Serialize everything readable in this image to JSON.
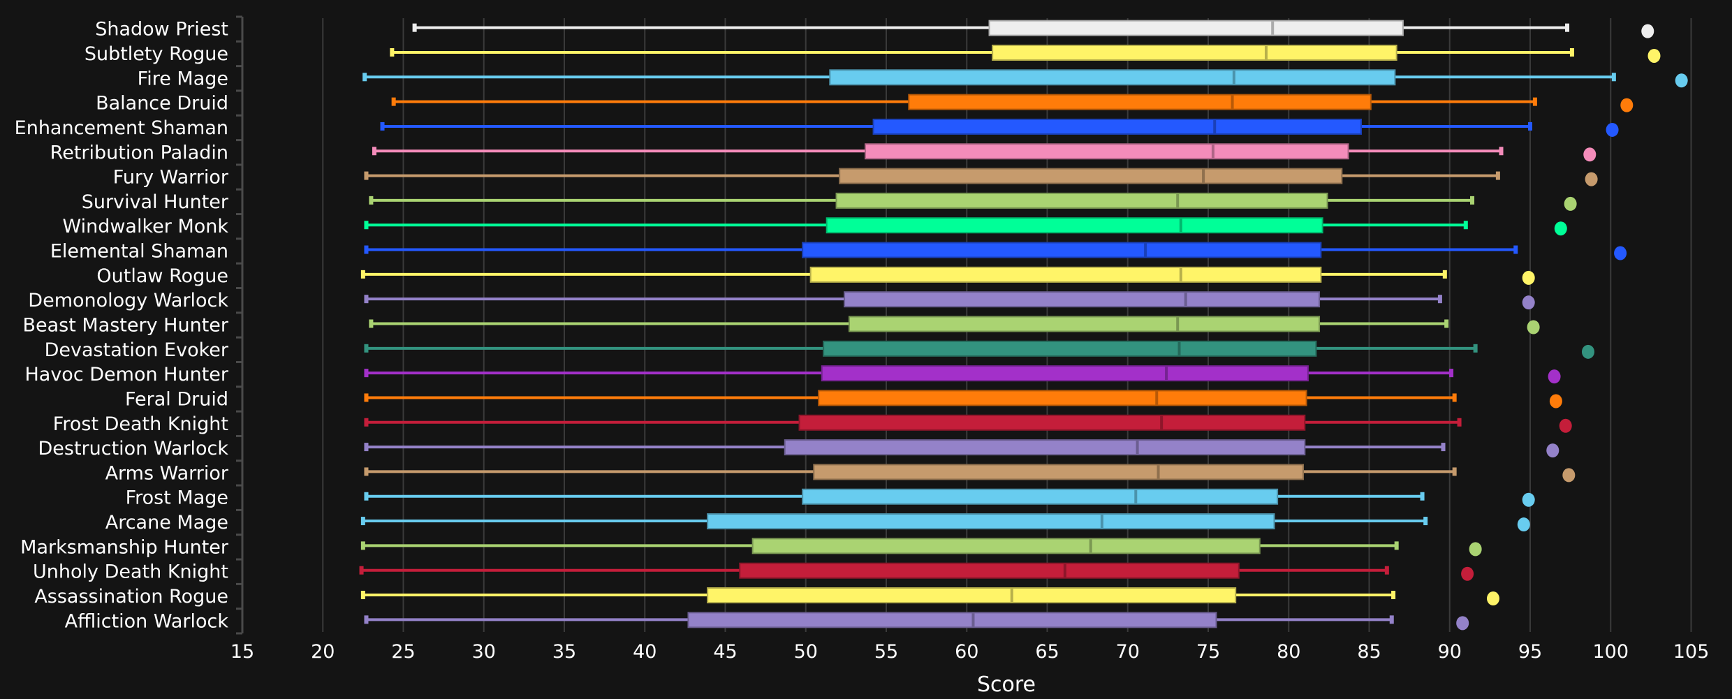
{
  "chart_data": {
    "type": "boxplot",
    "title": "",
    "xlabel": "Score",
    "ylabel": "",
    "xlim": [
      15,
      105
    ],
    "xticks": [
      15,
      20,
      25,
      30,
      35,
      40,
      45,
      50,
      55,
      60,
      65,
      70,
      75,
      80,
      85,
      90,
      95,
      100,
      105
    ],
    "grid": true,
    "orientation": "horizontal",
    "series": [
      {
        "name": "Shadow Priest",
        "color": "#eeeeee",
        "whisker_low": 25.7,
        "q1": 61.4,
        "median": 79.0,
        "q3": 87.1,
        "whisker_high": 97.3,
        "outlier": 102.3
      },
      {
        "name": "Subtlety Rogue",
        "color": "#fff468",
        "whisker_low": 24.3,
        "q1": 61.6,
        "median": 78.6,
        "q3": 86.7,
        "whisker_high": 97.6,
        "outlier": 102.7
      },
      {
        "name": "Fire Mage",
        "color": "#68ccef",
        "whisker_low": 22.6,
        "q1": 51.5,
        "median": 76.6,
        "q3": 86.6,
        "whisker_high": 100.2,
        "outlier": 104.4
      },
      {
        "name": "Balance Druid",
        "color": "#ff7c0a",
        "whisker_low": 24.4,
        "q1": 56.4,
        "median": 76.5,
        "q3": 85.1,
        "whisker_high": 95.3,
        "outlier": 101.0
      },
      {
        "name": "Enhancement Shaman",
        "color": "#2459ff",
        "whisker_low": 23.7,
        "q1": 54.2,
        "median": 75.4,
        "q3": 84.5,
        "whisker_high": 95.0,
        "outlier": 100.1
      },
      {
        "name": "Retribution Paladin",
        "color": "#f48cba",
        "whisker_low": 23.2,
        "q1": 53.7,
        "median": 75.3,
        "q3": 83.7,
        "whisker_high": 93.2,
        "outlier": 98.7
      },
      {
        "name": "Fury Warrior",
        "color": "#c69b6d",
        "whisker_low": 22.7,
        "q1": 52.1,
        "median": 74.7,
        "q3": 83.3,
        "whisker_high": 93.0,
        "outlier": 98.8
      },
      {
        "name": "Survival Hunter",
        "color": "#aad372",
        "whisker_low": 23.0,
        "q1": 51.9,
        "median": 73.1,
        "q3": 82.4,
        "whisker_high": 91.4,
        "outlier": 97.5
      },
      {
        "name": "Windwalker Monk",
        "color": "#00ff98",
        "whisker_low": 22.7,
        "q1": 51.3,
        "median": 73.3,
        "q3": 82.1,
        "whisker_high": 91.0,
        "outlier": 96.9
      },
      {
        "name": "Elemental Shaman",
        "color": "#2459ff",
        "whisker_low": 22.7,
        "q1": 49.8,
        "median": 71.1,
        "q3": 82.0,
        "whisker_high": 94.1,
        "outlier": 100.6
      },
      {
        "name": "Outlaw Rogue",
        "color": "#fff468",
        "whisker_low": 22.5,
        "q1": 50.3,
        "median": 73.3,
        "q3": 82.0,
        "whisker_high": 89.7,
        "outlier": 94.9
      },
      {
        "name": "Demonology Warlock",
        "color": "#9482c9",
        "whisker_low": 22.7,
        "q1": 52.4,
        "median": 73.6,
        "q3": 81.9,
        "whisker_high": 89.4,
        "outlier": 94.9
      },
      {
        "name": "Beast Mastery Hunter",
        "color": "#aad372",
        "whisker_low": 23.0,
        "q1": 52.7,
        "median": 73.1,
        "q3": 81.9,
        "whisker_high": 89.8,
        "outlier": 95.2
      },
      {
        "name": "Devastation Evoker",
        "color": "#33937f",
        "whisker_low": 22.7,
        "q1": 51.1,
        "median": 73.2,
        "q3": 81.7,
        "whisker_high": 91.6,
        "outlier": 98.6
      },
      {
        "name": "Havoc Demon Hunter",
        "color": "#a330c9",
        "whisker_low": 22.7,
        "q1": 51.0,
        "median": 72.4,
        "q3": 81.2,
        "whisker_high": 90.1,
        "outlier": 96.5
      },
      {
        "name": "Feral Druid",
        "color": "#ff7c0a",
        "whisker_low": 22.7,
        "q1": 50.8,
        "median": 71.8,
        "q3": 81.1,
        "whisker_high": 90.3,
        "outlier": 96.6
      },
      {
        "name": "Frost Death Knight",
        "color": "#c41e3a",
        "whisker_low": 22.7,
        "q1": 49.6,
        "median": 72.1,
        "q3": 81.0,
        "whisker_high": 90.6,
        "outlier": 97.2
      },
      {
        "name": "Destruction Warlock",
        "color": "#9482c9",
        "whisker_low": 22.7,
        "q1": 48.7,
        "median": 70.6,
        "q3": 81.0,
        "whisker_high": 89.6,
        "outlier": 96.4
      },
      {
        "name": "Arms Warrior",
        "color": "#c69b6d",
        "whisker_low": 22.7,
        "q1": 50.5,
        "median": 71.9,
        "q3": 80.9,
        "whisker_high": 90.3,
        "outlier": 97.4
      },
      {
        "name": "Frost Mage",
        "color": "#68ccef",
        "whisker_low": 22.7,
        "q1": 49.8,
        "median": 70.5,
        "q3": 79.3,
        "whisker_high": 88.3,
        "outlier": 94.9
      },
      {
        "name": "Arcane Mage",
        "color": "#68ccef",
        "whisker_low": 22.5,
        "q1": 43.9,
        "median": 68.4,
        "q3": 79.1,
        "whisker_high": 88.5,
        "outlier": 94.6
      },
      {
        "name": "Marksmanship Hunter",
        "color": "#aad372",
        "whisker_low": 22.5,
        "q1": 46.7,
        "median": 67.7,
        "q3": 78.2,
        "whisker_high": 86.7,
        "outlier": 91.6
      },
      {
        "name": "Unholy Death Knight",
        "color": "#c41e3a",
        "whisker_low": 22.4,
        "q1": 45.9,
        "median": 66.1,
        "q3": 76.9,
        "whisker_high": 86.1,
        "outlier": 91.1
      },
      {
        "name": "Assassination Rogue",
        "color": "#fff468",
        "whisker_low": 22.5,
        "q1": 43.9,
        "median": 62.8,
        "q3": 76.7,
        "whisker_high": 86.5,
        "outlier": 92.7
      },
      {
        "name": "Affliction Warlock",
        "color": "#9482c9",
        "whisker_low": 22.7,
        "q1": 42.7,
        "median": 60.4,
        "q3": 75.5,
        "whisker_high": 86.4,
        "outlier": 90.8
      }
    ]
  }
}
